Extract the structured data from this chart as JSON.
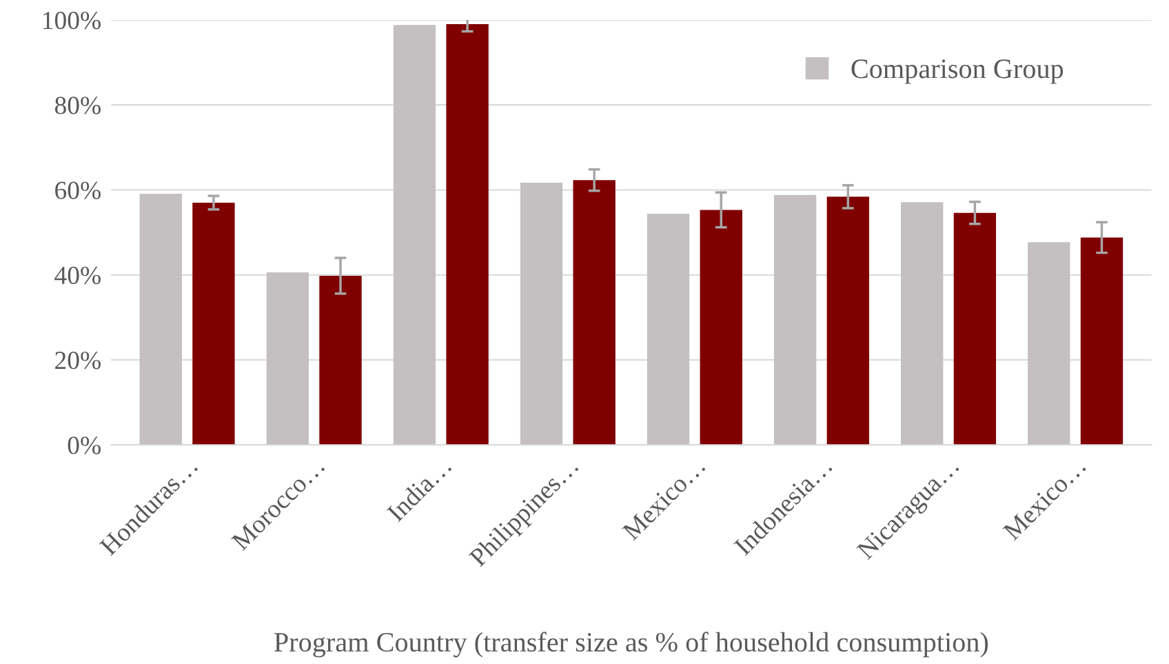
{
  "chart_data": {
    "type": "bar",
    "xlabel": "Program Country (transfer size as % of household consumption)",
    "categories": [
      "Honduras…",
      "Morocco…",
      "India…",
      "Philippines…",
      "Mexico…",
      "Indonesia…",
      "Nicaragua…",
      "Mexico…"
    ],
    "series": [
      {
        "name": "Comparison Group",
        "color": "#c4c0c1",
        "values": [
          59.1,
          40.6,
          98.8,
          61.7,
          54.4,
          58.8,
          57.1,
          47.7
        ]
      },
      {
        "color": "#800000",
        "values": [
          57.0,
          39.8,
          99.0,
          62.3,
          55.3,
          58.4,
          54.6,
          48.8
        ],
        "errors": [
          1.6,
          4.2,
          1.7,
          2.5,
          4.1,
          2.7,
          2.6,
          3.6
        ]
      }
    ],
    "ylim": [
      0,
      100
    ],
    "yticks": [
      {
        "value": 0,
        "label": "0%"
      },
      {
        "value": 20,
        "label": "20%"
      },
      {
        "value": 40,
        "label": "40%"
      },
      {
        "value": 60,
        "label": "60%"
      },
      {
        "value": 80,
        "label": "80%"
      },
      {
        "value": 100,
        "label": "100%"
      }
    ],
    "grid": "y",
    "legend": "top right"
  }
}
